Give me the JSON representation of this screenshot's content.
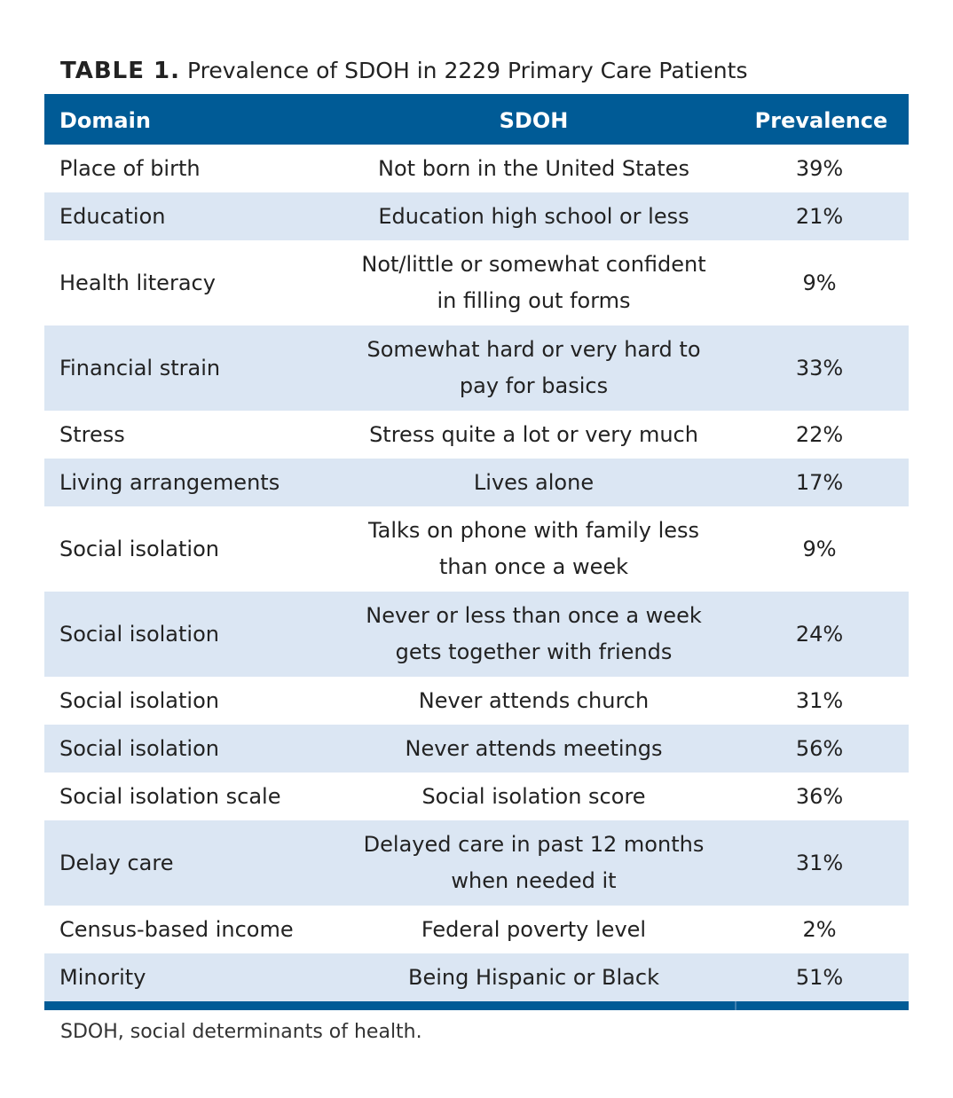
{
  "caption": {
    "label": "TABLE 1.",
    "title": "Prevalence of SDOH in 2229 Primary Care Patients"
  },
  "table": {
    "headers": {
      "domain": "Domain",
      "sdoh": "SDOH",
      "prevalence": "Prevalence"
    },
    "rows": [
      {
        "domain": "Place of birth",
        "sdoh": [
          "Not born in the United States"
        ],
        "prevalence": "39%"
      },
      {
        "domain": "Education",
        "sdoh": [
          "Education high school or less"
        ],
        "prevalence": "21%"
      },
      {
        "domain": "Health literacy",
        "sdoh": [
          "Not/little or somewhat confident",
          "in filling out forms"
        ],
        "prevalence": "9%"
      },
      {
        "domain": "Financial strain",
        "sdoh": [
          "Somewhat hard or very hard to",
          "pay for basics"
        ],
        "prevalence": "33%"
      },
      {
        "domain": "Stress",
        "sdoh": [
          "Stress quite a lot or very much"
        ],
        "prevalence": "22%"
      },
      {
        "domain": "Living arrangements",
        "sdoh": [
          "Lives alone"
        ],
        "prevalence": "17%"
      },
      {
        "domain": "Social isolation",
        "sdoh": [
          "Talks on phone with family less",
          "than once a week"
        ],
        "prevalence": "9%"
      },
      {
        "domain": "Social isolation",
        "sdoh": [
          "Never or less than once a week",
          "gets together with friends"
        ],
        "prevalence": "24%"
      },
      {
        "domain": "Social isolation",
        "sdoh": [
          "Never attends church"
        ],
        "prevalence": "31%"
      },
      {
        "domain": "Social isolation",
        "sdoh": [
          "Never attends meetings"
        ],
        "prevalence": "56%"
      },
      {
        "domain": "Social isolation scale",
        "sdoh": [
          "Social isolation score"
        ],
        "prevalence": "36%"
      },
      {
        "domain": "Delay care",
        "sdoh": [
          "Delayed care in past 12 months",
          "when needed it"
        ],
        "prevalence": "31%"
      },
      {
        "domain": "Census-based income",
        "sdoh": [
          "Federal poverty level"
        ],
        "prevalence": "2%"
      },
      {
        "domain": "Minority",
        "sdoh": [
          "Being Hispanic or Black"
        ],
        "prevalence": "51%"
      }
    ]
  },
  "footnote": "SDOH, social determinants of health.",
  "colors": {
    "header_bg": "#005b96",
    "header_text": "#ffffff",
    "alt_row_bg": "#dbe6f3",
    "text": "#222222"
  }
}
